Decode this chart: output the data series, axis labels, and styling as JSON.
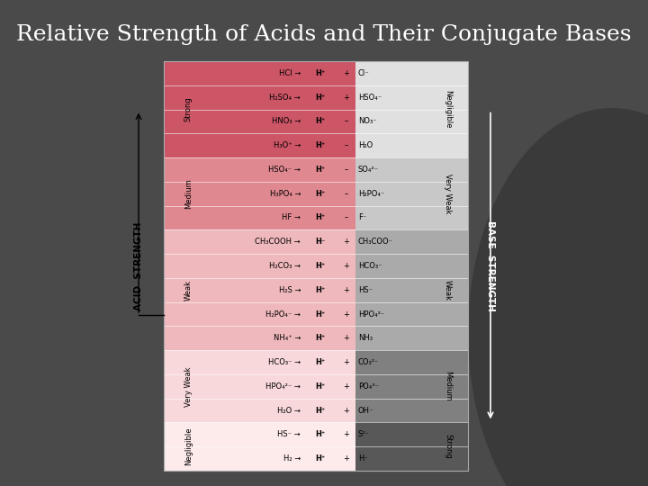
{
  "title": "Relative Strength of Acids and Their Conjugate Bases",
  "title_color": "#ffffff",
  "title_fontsize": 18,
  "bg_color": "#4a4a4a",
  "rows": [
    {
      "acid": "HCl →",
      "h": "H⁺",
      "sep": "+",
      "base": "Cl⁻",
      "acid_group": "Strong",
      "base_group": "Negligible"
    },
    {
      "acid": "H₂SO₄ →",
      "h": "H⁺",
      "sep": "+",
      "base": "HSO₄⁻",
      "acid_group": "Strong",
      "base_group": "Negligible"
    },
    {
      "acid": "HNO₃ →",
      "h": "H⁺",
      "sep": "–",
      "base": "NO₃⁻",
      "acid_group": "Strong",
      "base_group": "Negligible"
    },
    {
      "acid": "H₃O⁺ →",
      "h": "H⁺",
      "sep": "–",
      "base": "H₂O",
      "acid_group": "Strong",
      "base_group": "Negligible"
    },
    {
      "acid": "HSO₄⁻ →",
      "h": "H⁺",
      "sep": "–",
      "base": "SO₄²⁻",
      "acid_group": "Medium",
      "base_group": "Very Weak"
    },
    {
      "acid": "H₃PO₄ →",
      "h": "H⁺",
      "sep": "–",
      "base": "H₂PO₄⁻",
      "acid_group": "Medium",
      "base_group": "Very Weak"
    },
    {
      "acid": "HF →",
      "h": "H⁺",
      "sep": "–",
      "base": "F⁻",
      "acid_group": "Medium",
      "base_group": "Very Weak"
    },
    {
      "acid": "CH₃COOH →",
      "h": "H⁻",
      "sep": "+",
      "base": "CH₃COO⁻",
      "acid_group": "Weak",
      "base_group": "Weak"
    },
    {
      "acid": "H₂CO₃ →",
      "h": "H⁺",
      "sep": "+",
      "base": "HCO₃⁻",
      "acid_group": "Weak",
      "base_group": "Weak"
    },
    {
      "acid": "H₂S →",
      "h": "H⁺",
      "sep": "+",
      "base": "HS⁻",
      "acid_group": "Weak",
      "base_group": "Weak"
    },
    {
      "acid": "H₂PO₄⁻ →",
      "h": "H⁺",
      "sep": "+",
      "base": "HPO₄²⁻",
      "acid_group": "Weak",
      "base_group": "Weak"
    },
    {
      "acid": "NH₄⁺ →",
      "h": "H⁺",
      "sep": "+",
      "base": "NH₃",
      "acid_group": "Weak",
      "base_group": "Weak"
    },
    {
      "acid": "HCO₃⁻ →",
      "h": "H⁺",
      "sep": "+",
      "base": "CO₃²⁻",
      "acid_group": "Very Weak",
      "base_group": "Medium"
    },
    {
      "acid": "HPO₄²⁻ →",
      "h": "H⁺",
      "sep": "+",
      "base": "PO₄³⁻",
      "acid_group": "Very Weak",
      "base_group": "Medium"
    },
    {
      "acid": "H₂O →",
      "h": "H⁺",
      "sep": "+",
      "base": "OH⁻",
      "acid_group": "Very Weak",
      "base_group": "Medium"
    },
    {
      "acid": "HS⁻ →",
      "h": "H⁺",
      "sep": "+",
      "base": "S²⁻",
      "acid_group": "Negligible",
      "base_group": "Strong"
    },
    {
      "acid": "H₂ →",
      "h": "H⁺",
      "sep": "+",
      "base": "H⁻",
      "acid_group": "Negligible",
      "base_group": "Strong"
    }
  ],
  "acid_group_colors": {
    "Strong": "#cc5566",
    "Medium": "#e08890",
    "Weak": "#efb8bc",
    "Very Weak": "#f8d8da",
    "Negligible": "#fdeaea"
  },
  "base_group_colors": {
    "Negligible": "#e0e0e0",
    "Very Weak": "#c8c8c8",
    "Weak": "#aaaaaa",
    "Medium": "#808080",
    "Strong": "#585858"
  },
  "acid_group_rows": {
    "Strong": [
      0,
      1,
      2,
      3
    ],
    "Medium": [
      4,
      5,
      6
    ],
    "Weak": [
      7,
      8,
      9,
      10,
      11
    ],
    "Very Weak": [
      12,
      13,
      14
    ],
    "Negligible": [
      15,
      16
    ]
  },
  "base_group_rows": {
    "Negligible": [
      0,
      1,
      2,
      3
    ],
    "Very Weak": [
      4,
      5,
      6
    ],
    "Weak": [
      7,
      8,
      9,
      10,
      11
    ],
    "Medium": [
      12,
      13,
      14
    ],
    "Strong": [
      15,
      16
    ]
  }
}
